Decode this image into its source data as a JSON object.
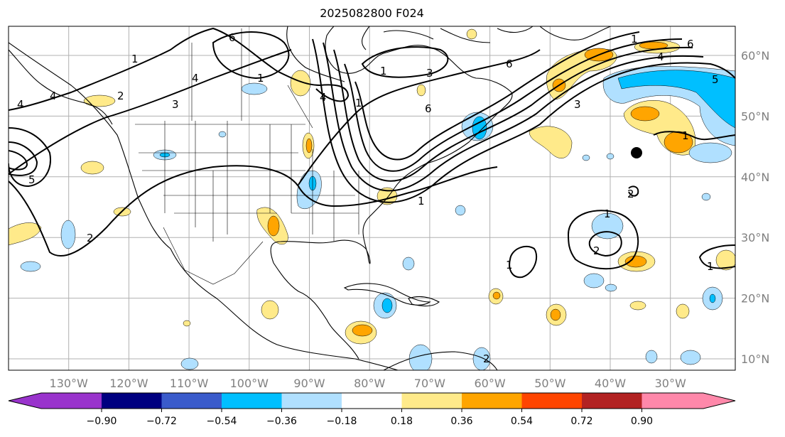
{
  "title": "2025082800 F024",
  "map": {
    "lon_labels": [
      "130°W",
      "120°W",
      "110°W",
      "100°W",
      "90°W",
      "80°W",
      "70°W",
      "60°W",
      "50°W",
      "40°W",
      "30°W"
    ],
    "lon_values": [
      -130,
      -120,
      -110,
      -100,
      -90,
      -80,
      -70,
      -60,
      -50,
      -40,
      -30
    ],
    "lat_labels": [
      "60°N",
      "50°N",
      "40°N",
      "30°N",
      "20°N",
      "10°N"
    ],
    "lat_values": [
      60,
      50,
      40,
      30,
      20,
      10
    ],
    "extent": {
      "lon": [
        -140,
        -20
      ],
      "lat": [
        8,
        65
      ]
    },
    "contour_labels": [
      "1",
      "6",
      "4",
      "3",
      "2",
      "4",
      "1",
      "3",
      "6",
      "1",
      "1",
      "2",
      "6",
      "4",
      "3",
      "1",
      "4",
      "5",
      "6",
      "1",
      "2",
      "1",
      "2",
      "1",
      "1",
      "1",
      "2",
      "5",
      "4"
    ],
    "marker": "storm-center-dot"
  },
  "colorbar": {
    "colors": [
      "#9933CC",
      "#000080",
      "#3A5BCB",
      "#00BFFF",
      "#B0E0FF",
      "#FFFFFF",
      "#FFEA8A",
      "#FFA500",
      "#FF4500",
      "#B22222",
      "#FF88AA"
    ],
    "tick_labels": [
      "−0.90",
      "−0.72",
      "−0.54",
      "−0.36",
      "−0.18",
      "0.18",
      "0.36",
      "0.54",
      "0.72",
      "0.90"
    ],
    "tick_values": [
      -0.9,
      -0.72,
      -0.54,
      -0.36,
      -0.18,
      0.18,
      0.36,
      0.54,
      0.72,
      0.9
    ],
    "extend": "both"
  }
}
